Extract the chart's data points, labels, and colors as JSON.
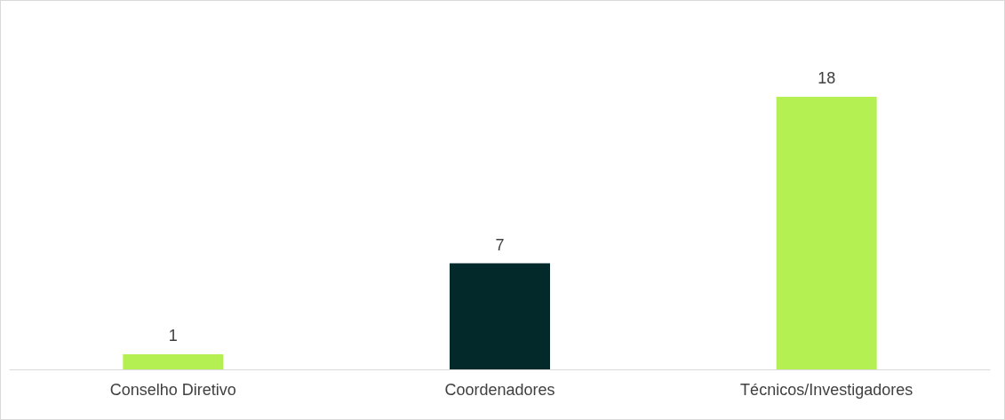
{
  "chart_data": {
    "type": "bar",
    "categories": [
      "Conselho Diretivo",
      "Coordenadores",
      "Técnicos/Investigadores"
    ],
    "values": [
      1,
      7,
      18
    ],
    "colors": [
      "#b4f052",
      "#03292b",
      "#b4f052"
    ],
    "data_labels": true
  }
}
